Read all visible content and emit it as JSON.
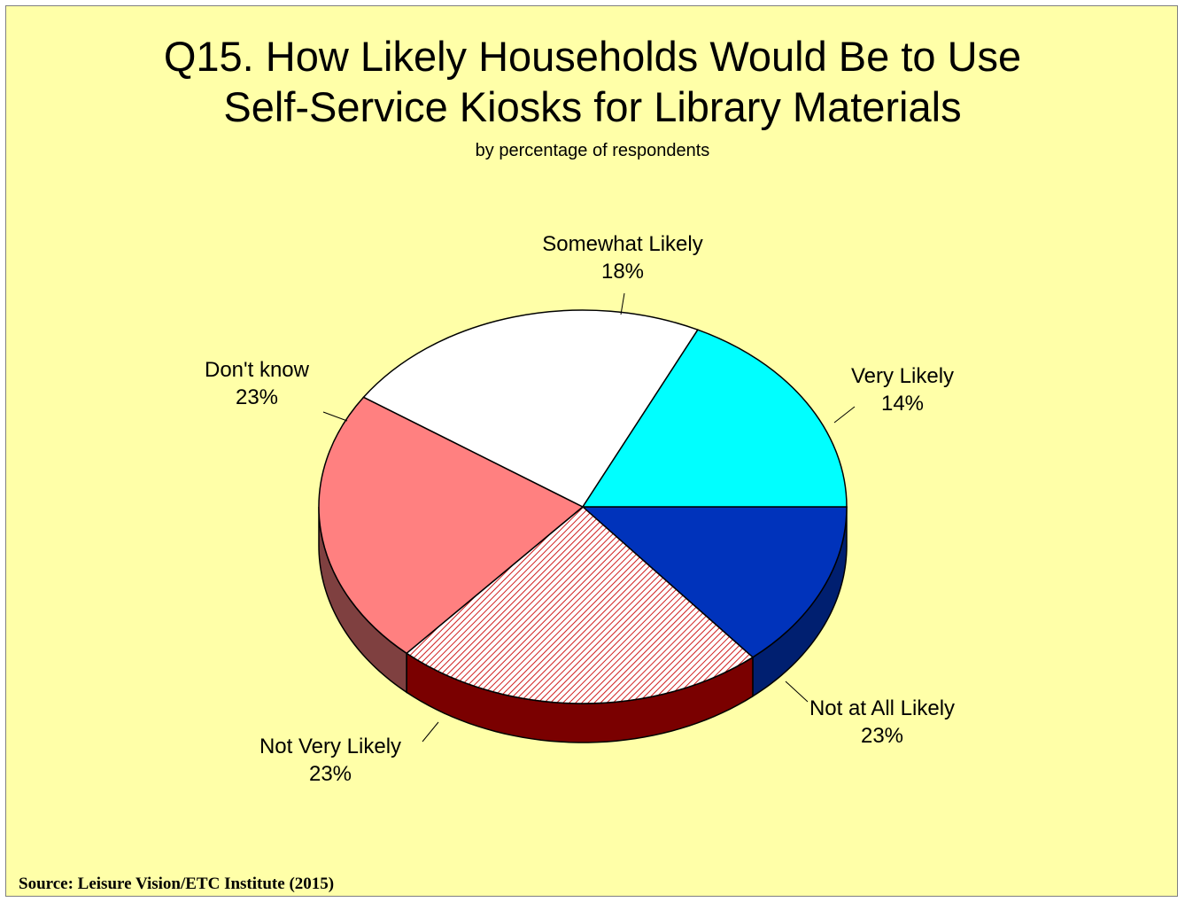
{
  "title_line1": "Q15. How Likely Households Would Be to Use",
  "title_line2": "Self-Service Kiosks for Library Materials",
  "subtitle": "by percentage of respondents",
  "source": "Source:  Leisure Vision/ETC Institute (2015)",
  "chart_data": {
    "type": "pie",
    "title": "Q15. How Likely Households Would Be to Use Self-Service Kiosks for Library Materials",
    "subtitle": "by percentage of respondents",
    "slices": [
      {
        "label": "Very Likely",
        "value": 14,
        "display": "14%",
        "color": "#0033bb",
        "side_color": "#001f70",
        "pattern": "none"
      },
      {
        "label": "Not at All Likely",
        "value": 23,
        "display": "23%",
        "color": "#ffffff",
        "side_color": "#7a0000",
        "pattern": "red-diagonal-hatch"
      },
      {
        "label": "Not Very Likely",
        "value": 23,
        "display": "23%",
        "color": "#ff8080",
        "side_color": "#7f4040",
        "pattern": "none"
      },
      {
        "label": "Don't know",
        "value": 23,
        "display": "23%",
        "color": "#ffffff",
        "side_color": "#7f7f7f",
        "pattern": "none"
      },
      {
        "label": "Somewhat Likely",
        "value": 18,
        "display": "18%",
        "color": "#00ffff",
        "side_color": "#008080",
        "pattern": "none"
      }
    ],
    "style": "3d-pie",
    "background_color": "#ffffa8"
  }
}
